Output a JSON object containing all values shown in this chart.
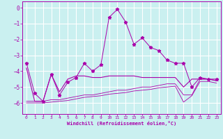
{
  "xlabel": "Windchill (Refroidissement éolien,°C)",
  "background_color": "#caf0f0",
  "grid_color": "#ffffff",
  "line_color": "#aa00aa",
  "xlim": [
    -0.5,
    23.5
  ],
  "ylim": [
    -6.7,
    0.4
  ],
  "yticks": [
    0,
    -1,
    -2,
    -3,
    -4,
    -5,
    -6
  ],
  "xticks": [
    0,
    1,
    2,
    3,
    4,
    5,
    6,
    7,
    8,
    9,
    10,
    11,
    12,
    13,
    14,
    15,
    16,
    17,
    18,
    19,
    20,
    21,
    22,
    23
  ],
  "line1_x": [
    0,
    1,
    2,
    3,
    4,
    5,
    6,
    7,
    8,
    9,
    10,
    11,
    12,
    13,
    14,
    15,
    16,
    17,
    18,
    19,
    20,
    21,
    22,
    23
  ],
  "line1_y": [
    -3.5,
    -5.4,
    -5.9,
    -4.2,
    -5.5,
    -4.7,
    -4.4,
    -3.5,
    -4.0,
    -3.6,
    -0.6,
    -0.1,
    -0.9,
    -2.3,
    -1.9,
    -2.5,
    -2.7,
    -3.3,
    -3.5,
    -3.5,
    -5.0,
    -4.4,
    -4.5,
    -4.5
  ],
  "line2_x": [
    0,
    1,
    2,
    3,
    4,
    5,
    6,
    7,
    8,
    9,
    10,
    11,
    12,
    13,
    14,
    15,
    16,
    17,
    18,
    19,
    20,
    21,
    22,
    23
  ],
  "line2_y": [
    -3.8,
    -5.9,
    -5.9,
    -4.2,
    -5.3,
    -4.5,
    -4.3,
    -4.3,
    -4.4,
    -4.4,
    -4.3,
    -4.3,
    -4.3,
    -4.3,
    -4.4,
    -4.4,
    -4.4,
    -4.4,
    -4.4,
    -5.0,
    -4.5,
    -4.5,
    -4.5,
    -4.6
  ],
  "line3_x": [
    0,
    1,
    2,
    3,
    4,
    5,
    6,
    7,
    8,
    9,
    10,
    11,
    12,
    13,
    14,
    15,
    16,
    17,
    18,
    19,
    20,
    21,
    22,
    23
  ],
  "line3_y": [
    -5.9,
    -5.9,
    -5.9,
    -5.8,
    -5.8,
    -5.7,
    -5.6,
    -5.5,
    -5.5,
    -5.4,
    -5.3,
    -5.2,
    -5.2,
    -5.1,
    -5.0,
    -5.0,
    -4.9,
    -4.8,
    -4.8,
    -5.5,
    -5.5,
    -4.5,
    -4.5,
    -4.6
  ],
  "line4_x": [
    0,
    1,
    2,
    3,
    4,
    5,
    6,
    7,
    8,
    9,
    10,
    11,
    12,
    13,
    14,
    15,
    16,
    17,
    18,
    19,
    20,
    21,
    22,
    23
  ],
  "line4_y": [
    -6.0,
    -6.0,
    -6.0,
    -5.95,
    -5.9,
    -5.85,
    -5.75,
    -5.65,
    -5.6,
    -5.55,
    -5.45,
    -5.4,
    -5.35,
    -5.25,
    -5.2,
    -5.15,
    -5.05,
    -5.0,
    -4.95,
    -5.95,
    -5.55,
    -4.65,
    -4.65,
    -4.75
  ]
}
